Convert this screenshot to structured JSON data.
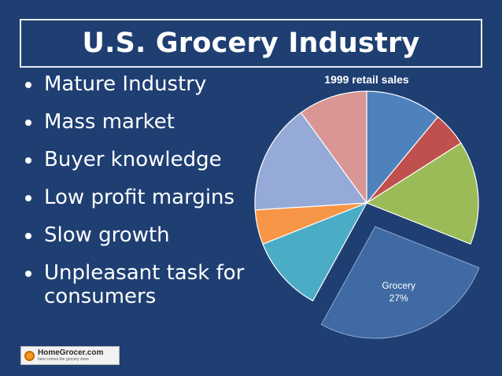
{
  "slide": {
    "title": "U.S. Grocery Industry",
    "bullets": [
      "Mature Industry",
      "Mass market",
      "Buyer knowledge",
      "Low profit margins",
      "Slow growth",
      "Unpleasant task for consumers"
    ]
  },
  "logo": {
    "name": "HomeGrocer.com",
    "tagline": "here comes the grocery store"
  },
  "chart_data": {
    "type": "pie",
    "title": "1999 retail sales",
    "slices": [
      {
        "label": "",
        "value": 11,
        "color": "#4f81bd"
      },
      {
        "label": "",
        "value": 5,
        "color": "#c0504d"
      },
      {
        "label": "",
        "value": 15,
        "color": "#9bbb59"
      },
      {
        "label": "Grocery",
        "value": 27,
        "color": "#3f6aa3",
        "display_value": "27%",
        "exploded": true
      },
      {
        "label": "",
        "value": 11,
        "color": "#4bacc6"
      },
      {
        "label": "",
        "value": 5,
        "color": "#f79646"
      },
      {
        "label": "",
        "value": 16,
        "color": "#95aad6"
      },
      {
        "label": "",
        "value": 10,
        "color": "#d99694"
      }
    ]
  }
}
